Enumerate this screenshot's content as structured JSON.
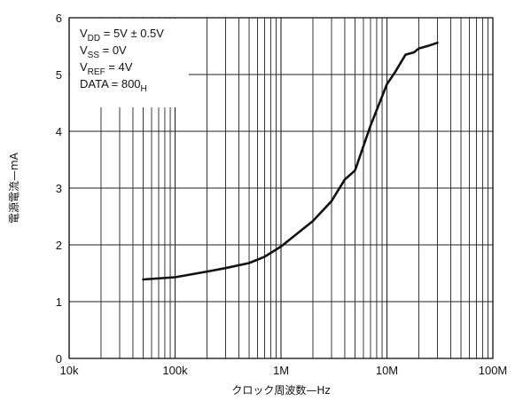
{
  "chart_data": {
    "type": "line",
    "xscale": "log",
    "xlim": [
      10000,
      100000000
    ],
    "ylim": [
      0,
      6
    ],
    "grid": true,
    "xlabel": "クロック周波数—Hz",
    "ylabel": "電源電流—mA",
    "x_tick_labels": [
      {
        "value": 10000,
        "label": "10k"
      },
      {
        "value": 100000,
        "label": "100k"
      },
      {
        "value": 1000000,
        "label": "1M"
      },
      {
        "value": 10000000,
        "label": "10M"
      },
      {
        "value": 100000000,
        "label": "100M"
      }
    ],
    "y_tick_labels": [
      {
        "value": 0,
        "label": "0"
      },
      {
        "value": 1,
        "label": "1"
      },
      {
        "value": 2,
        "label": "2"
      },
      {
        "value": 3,
        "label": "3"
      },
      {
        "value": 4,
        "label": "4"
      },
      {
        "value": 5,
        "label": "5"
      },
      {
        "value": 6,
        "label": "6"
      }
    ],
    "annotation": [
      {
        "main": "V",
        "sub": "DD",
        "rest": " = 5V ± 0.5V"
      },
      {
        "main": "V",
        "sub": "SS",
        "rest": " = 0V"
      },
      {
        "main": "V",
        "sub": "REF",
        "rest": " = 4V"
      },
      {
        "main": "DATA = 800",
        "sub": "H",
        "rest": ""
      }
    ],
    "series": [
      {
        "color": "#111111",
        "points": [
          [
            50000,
            1.39
          ],
          [
            100000,
            1.43
          ],
          [
            200000,
            1.53
          ],
          [
            300000,
            1.59
          ],
          [
            500000,
            1.68
          ],
          [
            700000,
            1.79
          ],
          [
            1000000,
            1.97
          ],
          [
            2000000,
            2.42
          ],
          [
            3000000,
            2.77
          ],
          [
            4000000,
            3.15
          ],
          [
            5000000,
            3.31
          ],
          [
            7000000,
            4.1
          ],
          [
            10000000,
            4.83
          ],
          [
            12000000,
            5.05
          ],
          [
            15000000,
            5.35
          ],
          [
            18000000,
            5.39
          ],
          [
            20000000,
            5.46
          ],
          [
            25000000,
            5.51
          ],
          [
            30000000,
            5.56
          ]
        ]
      }
    ]
  }
}
